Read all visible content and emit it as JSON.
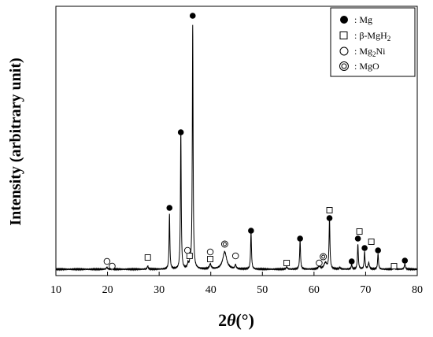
{
  "chart_data": {
    "type": "line",
    "title": "",
    "xlabel": "2θ(°)",
    "xlabel_parts": {
      "symbol": "2",
      "theta": "θ",
      "unit": "(°)"
    },
    "ylabel": "Intensity (arbitrary unit)",
    "xlim": [
      10,
      80
    ],
    "y_ticks_shown": false,
    "x_ticks": [
      10,
      20,
      30,
      40,
      50,
      60,
      70,
      80
    ],
    "grid": false,
    "legend_position": "top-right",
    "legend": [
      {
        "marker": "filled-circle",
        "label": ": Mg"
      },
      {
        "marker": "open-square",
        "label": ": β-MgH",
        "sub": "2"
      },
      {
        "marker": "open-circle",
        "label": ": Mg",
        "sub": "2",
        "suffix": "Ni"
      },
      {
        "marker": "double-circle",
        "label": ": MgO"
      }
    ],
    "series": [
      {
        "baseline": 2,
        "peaks": [
          {
            "x": 19.9,
            "y": 2.5,
            "w": 0.15
          },
          {
            "x": 20.9,
            "y": 1,
            "w": 0.15
          },
          {
            "x": 27.8,
            "y": 4,
            "w": 0.12
          },
          {
            "x": 32.0,
            "y": 70,
            "w": 0.09
          },
          {
            "x": 34.2,
            "y": 175,
            "w": 0.09
          },
          {
            "x": 35.6,
            "y": 6,
            "w": 0.12
          },
          {
            "x": 36.0,
            "y": 8,
            "w": 0.12
          },
          {
            "x": 36.5,
            "y": 310,
            "w": 0.09
          },
          {
            "x": 39.9,
            "y": 6,
            "w": 0.2
          },
          {
            "x": 42.7,
            "y": 22,
            "w": 0.45
          },
          {
            "x": 44.8,
            "y": 5,
            "w": 0.15
          },
          {
            "x": 47.8,
            "y": 47,
            "w": 0.1
          },
          {
            "x": 54.7,
            "y": 3,
            "w": 0.15
          },
          {
            "x": 57.3,
            "y": 37,
            "w": 0.1
          },
          {
            "x": 61.0,
            "y": 4,
            "w": 0.2
          },
          {
            "x": 62.2,
            "y": 8,
            "w": 0.35
          },
          {
            "x": 63.0,
            "y": 64,
            "w": 0.1
          },
          {
            "x": 65.0,
            "y": 2,
            "w": 0.15
          },
          {
            "x": 67.3,
            "y": 6,
            "w": 0.1
          },
          {
            "x": 68.5,
            "y": 32,
            "w": 0.1
          },
          {
            "x": 69.8,
            "y": 22,
            "w": 0.1
          },
          {
            "x": 70.6,
            "y": 8,
            "w": 0.15
          },
          {
            "x": 72.4,
            "y": 20,
            "w": 0.1
          },
          {
            "x": 75.5,
            "y": 2,
            "w": 0.2
          },
          {
            "x": 77.6,
            "y": 7,
            "w": 0.12
          }
        ]
      }
    ],
    "markers": [
      {
        "type": "filled-circle",
        "x": 32.0,
        "y": 80
      },
      {
        "type": "filled-circle",
        "x": 34.2,
        "y": 176
      },
      {
        "type": "filled-circle",
        "x": 36.5,
        "y": 324
      },
      {
        "type": "filled-circle",
        "x": 47.8,
        "y": 51
      },
      {
        "type": "filled-circle",
        "x": 57.3,
        "y": 41
      },
      {
        "type": "filled-circle",
        "x": 63.0,
        "y": 67
      },
      {
        "type": "filled-circle",
        "x": 67.3,
        "y": 12
      },
      {
        "type": "filled-circle",
        "x": 68.5,
        "y": 41
      },
      {
        "type": "filled-circle",
        "x": 69.8,
        "y": 29
      },
      {
        "type": "filled-circle",
        "x": 72.4,
        "y": 26
      },
      {
        "type": "filled-circle",
        "x": 77.6,
        "y": 13
      },
      {
        "type": "open-square",
        "x": 27.8,
        "y": 17
      },
      {
        "type": "open-square",
        "x": 35.9,
        "y": 19
      },
      {
        "type": "open-square",
        "x": 39.9,
        "y": 15
      },
      {
        "type": "open-square",
        "x": 54.7,
        "y": 10
      },
      {
        "type": "open-square",
        "x": 63.0,
        "y": 77
      },
      {
        "type": "open-square",
        "x": 68.8,
        "y": 50
      },
      {
        "type": "open-square",
        "x": 71.1,
        "y": 37
      },
      {
        "type": "open-square",
        "x": 75.5,
        "y": 6
      },
      {
        "type": "open-circle",
        "x": 19.9,
        "y": 12
      },
      {
        "type": "open-circle",
        "x": 20.9,
        "y": 6
      },
      {
        "type": "open-circle",
        "x": 35.5,
        "y": 26
      },
      {
        "type": "open-circle",
        "x": 39.9,
        "y": 24
      },
      {
        "type": "open-circle",
        "x": 44.8,
        "y": 19
      },
      {
        "type": "open-circle",
        "x": 61.0,
        "y": 10
      },
      {
        "type": "double-circle",
        "x": 42.7,
        "y": 34
      },
      {
        "type": "double-circle",
        "x": 61.8,
        "y": 18
      }
    ]
  }
}
